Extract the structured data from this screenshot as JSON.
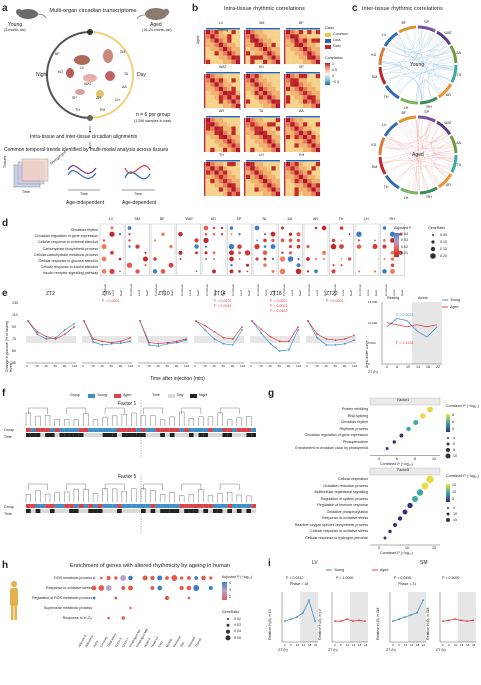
{
  "panel_labels": [
    "a",
    "b",
    "c",
    "d",
    "e",
    "f",
    "g",
    "h",
    "i"
  ],
  "a": {
    "title": "Multi-organ circadian transcriptome",
    "young": "Young",
    "young_age": "(3-month-old)",
    "aged": "Aged",
    "aged_age": "(18–20-month-old)",
    "night": "Night",
    "day": "Day",
    "organs": [
      "SM",
      "TA",
      "AA",
      "LH",
      "RH",
      "TH",
      "AR",
      "WAT",
      "SP",
      "KD",
      "BF",
      "LV"
    ],
    "n_text": "n = 6 per group",
    "samples_text": "(1,296 samples in total)",
    "alignment": "Intra-tissue and inter-tissue circadian alignments",
    "common": "Common temporal trends identified by multi-modal analysis across tissues",
    "axis_tissues": "Tissues",
    "axis_timing": "Timing/Aged",
    "axis_time": "Time",
    "age_indep": "Age-independent",
    "age_dep": "Age-dependent",
    "time": "Time"
  },
  "b": {
    "title": "Intra-tissue rhythmic correlations",
    "tissues": [
      "LV",
      "SM",
      "BF",
      "WAT",
      "KD",
      "SP",
      "AR",
      "TA",
      "AA",
      "TH",
      "LH",
      "RH"
    ],
    "young_label": "Young",
    "aged_label": "Aged",
    "legend_class": "Class",
    "class_common": "Common",
    "class_loss": "Loss",
    "class_gain": "Gain",
    "legend_corr": "Correlation",
    "corr_ticks": [
      "1",
      "0.5",
      "0",
      "−0.5"
    ]
  },
  "c": {
    "title": "Inter-tissue rhythmic correlations",
    "young": "Young",
    "aged": "Aged",
    "young_organs": [
      "SP",
      "WAT",
      "AA",
      "TA",
      "AR",
      "RH",
      "LH",
      "TH",
      "SM",
      "KD",
      "LV",
      "BF"
    ],
    "aged_organs": [
      "SP",
      "WAT",
      "AA",
      "TA",
      "AR",
      "RH",
      "LH",
      "TH",
      "SM",
      "KD",
      "LV",
      "BF"
    ]
  },
  "d": {
    "terms": [
      "Circadian rhythm",
      "Circadian regulation of gene expression",
      "Cellular response to external stimulus",
      "Carbohydrate biosynthetic process",
      "Cellular carbohydrate metabolic process",
      "Cellular response to glucose stimulus",
      "Cellular response to insulin stimulus",
      "Insulin receptor signalling pathway"
    ],
    "tissues": [
      "LV",
      "SM",
      "BF",
      "WAT",
      "KD",
      "SP",
      "TA",
      "AA",
      "AR",
      "TH",
      "LH",
      "RH"
    ],
    "cols": [
      "Common",
      "Loss",
      "Gain"
    ],
    "legend_adjp": "Adjusted P",
    "adjp_ticks": [
      "0.04",
      "0.03",
      "0.02",
      "0.01"
    ],
    "legend_ratio": "GeneRatio",
    "ratio_ticks": [
      "0.05",
      "0.10",
      "0.15",
      "0.20"
    ]
  },
  "e": {
    "zt": [
      "ZT2",
      "ZT6",
      "ZT10",
      "ZT14",
      "ZT18",
      "ZT22"
    ],
    "pvals": [
      "",
      "P = 0.0001",
      "",
      "P = 0.0070\nP = 0.0042",
      "P = 0.0001\nP = 0.0022\nP = 0.0493",
      "P < 0.0001"
    ],
    "xticks": [
      "0",
      "15",
      "30",
      "60",
      "90",
      "120"
    ],
    "ylabel": "Change in glucose (% of fasting levels)",
    "xlabel": "Time after injection (min)",
    "yticks": [
      "130",
      "110",
      "90",
      "70",
      "50",
      "30"
    ],
    "auc_ylabel": "Area under curve",
    "auc_xlabel": "ZT (h)",
    "auc_xticks": [
      "2",
      "6",
      "10",
      "14",
      "18",
      "22"
    ],
    "auc_yticks": [
      "15,000",
      "10,000",
      "5,000",
      "0"
    ],
    "resting": "Resting",
    "active": "Active",
    "auc_p1": "P = 0.0033",
    "auc_p2": "P = 0.4328",
    "legend": [
      "Young",
      "Aged"
    ],
    "colors": {
      "young": "#3f8fc9",
      "aged": "#d9444a"
    }
  },
  "f": {
    "legend_group": "Group",
    "legend_young": "Young",
    "legend_aged": "Aged",
    "legend_time": "Time",
    "legend_day": "Day",
    "legend_night": "Night",
    "factor1": "Factor 1",
    "factor5": "Factor 5",
    "row_group": "Group",
    "row_time": "Time"
  },
  "g": {
    "f1_title": "Factor1",
    "f1_terms": [
      "Protein refolding",
      "RNA splicing",
      "Circadian rhythm",
      "Rhythmic process",
      "Circadian regulation of gene expression",
      "Photoperiodism",
      "Entrainment of circadian clock by photoperiod"
    ],
    "f1_xlabel": "Combined P (−log₁₀)",
    "f1_xticks": [
      "4",
      "6",
      "8",
      "10"
    ],
    "f1_legend": "Combined P (−log₁₀)",
    "f1_legend_ticks": [
      "8",
      "6",
      "4"
    ],
    "f1_size_ticks": [
      "4",
      "6",
      "8",
      "10"
    ],
    "f5_title": "Factor5",
    "f5_terms": [
      "Cellular respiration",
      "Oxidation-reduction process",
      "Multicellular organismal signalling",
      "Regulation of system process",
      "Regulation of immune response",
      "Oxidative phosphorylation",
      "Response to oxidative stress",
      "Reactive oxygen species biosynthetic process",
      "Cellular response to oxidative stress",
      "Cellular response to hydrogen peroxide"
    ],
    "f5_xlabel": "Combined P (−log₁₀)",
    "f5_xticks": [
      "5",
      "10",
      "15"
    ],
    "f5_legend": "Combined P (−log₁₀)",
    "f5_legend_ticks": [
      "15",
      "10",
      "5"
    ],
    "f5_size_ticks": [
      "5",
      "10",
      "15"
    ]
  },
  "h": {
    "title": "Enrichment of genes with altered rhythmicity by ageing in human",
    "terms": [
      "ROS metabolic process",
      "Response to oxidative stress",
      "Regulation of ROS metabolic process",
      "Superoxide metabolic process",
      "Response to H₂O₂"
    ],
    "tissues": [
      "Adipose-S",
      "Adipose-V",
      "Aorta",
      "Coronary",
      "Tibial artery",
      "Colon-S",
      "Colon-T",
      "Esophagus-Mu",
      "Esophagus-MM",
      "Heart-A",
      "Heart-LV",
      "Liver",
      "Muscle",
      "Pancreas",
      "Skin",
      "Stomach",
      "Thyroid"
    ],
    "legend_adjp": "Adjusted P (−log₁₀)",
    "adjp_ticks": [
      "4",
      "3",
      "2"
    ],
    "legend_ratio": "GeneRatio",
    "ratio_ticks": [
      "0.02",
      "0.03",
      "0.04",
      "0.05"
    ]
  },
  "i": {
    "lv_title": "LV",
    "sm_title": "SM",
    "legend": [
      "Young",
      "Aged"
    ],
    "lv_p1": "P = 0.0342",
    "lv_phase": "Phase = 18",
    "lv_p2": "P = 1.0000",
    "sm_p1": "P = 0.0456",
    "sm_phase": "Phase = 21",
    "sm_p2": "P = 0.9600",
    "ylabel_lv": "Relative H₂O₂ in LV",
    "ylabel_sm": "Relative H₂O₂ in SM",
    "xlabel": "ZT (h)",
    "xticks": [
      "2",
      "6",
      "10",
      "14",
      "18",
      "24"
    ]
  }
}
